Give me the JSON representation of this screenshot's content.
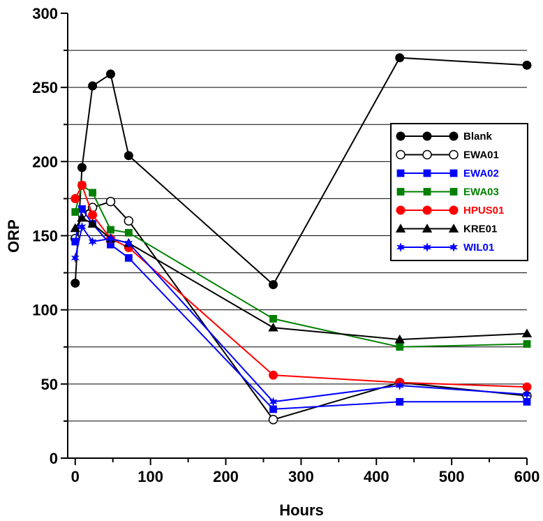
{
  "chart_data": {
    "type": "line",
    "title": "",
    "xlabel": "Hours",
    "ylabel": "ORP",
    "xlim": [
      -10,
      600
    ],
    "ylim": [
      0,
      300
    ],
    "xticks": [
      0,
      100,
      200,
      300,
      400,
      500,
      600
    ],
    "yticks": [
      0,
      50,
      100,
      150,
      200,
      250,
      300
    ],
    "grid": "horizontal",
    "legend": "right",
    "series": [
      {
        "name": "Blank",
        "color": "#000000",
        "marker": "circle-filled",
        "x": [
          0,
          9,
          23,
          47,
          71,
          263,
          431,
          600
        ],
        "y": [
          118,
          196,
          251,
          259,
          204,
          117,
          270,
          265
        ]
      },
      {
        "name": "EWA01",
        "color": "#000000",
        "marker": "circle-open",
        "x": [
          0,
          9,
          23,
          47,
          71,
          263,
          431,
          600
        ],
        "y": [
          148,
          165,
          169,
          173,
          160,
          26,
          51,
          42
        ]
      },
      {
        "name": "EWA02",
        "color": "#0000ff",
        "marker": "square",
        "x": [
          0,
          9,
          23,
          47,
          71,
          263,
          431,
          600
        ],
        "y": [
          146,
          168,
          158,
          144,
          135,
          33,
          38,
          38
        ]
      },
      {
        "name": "EWA03",
        "color": "#008000",
        "marker": "square",
        "x": [
          0,
          9,
          23,
          47,
          71,
          263,
          431,
          600
        ],
        "y": [
          166,
          184,
          179,
          154,
          152,
          94,
          75,
          77
        ]
      },
      {
        "name": "HPUS01",
        "color": "#ff0000",
        "marker": "circle-filled",
        "x": [
          0,
          9,
          23,
          47,
          71,
          263,
          431,
          600
        ],
        "y": [
          175,
          184,
          164,
          148,
          142,
          56,
          51,
          48
        ]
      },
      {
        "name": "KRE01",
        "color": "#000000",
        "marker": "triangle",
        "x": [
          0,
          9,
          23,
          47,
          71,
          263,
          431,
          600
        ],
        "y": [
          155,
          162,
          158,
          148,
          145,
          88,
          80,
          84
        ]
      },
      {
        "name": "WIL01",
        "color": "#0000ff",
        "marker": "star",
        "x": [
          0,
          9,
          23,
          47,
          71,
          263,
          431,
          600
        ],
        "y": [
          135,
          156,
          146,
          148,
          145,
          38,
          49,
          43
        ]
      }
    ]
  }
}
